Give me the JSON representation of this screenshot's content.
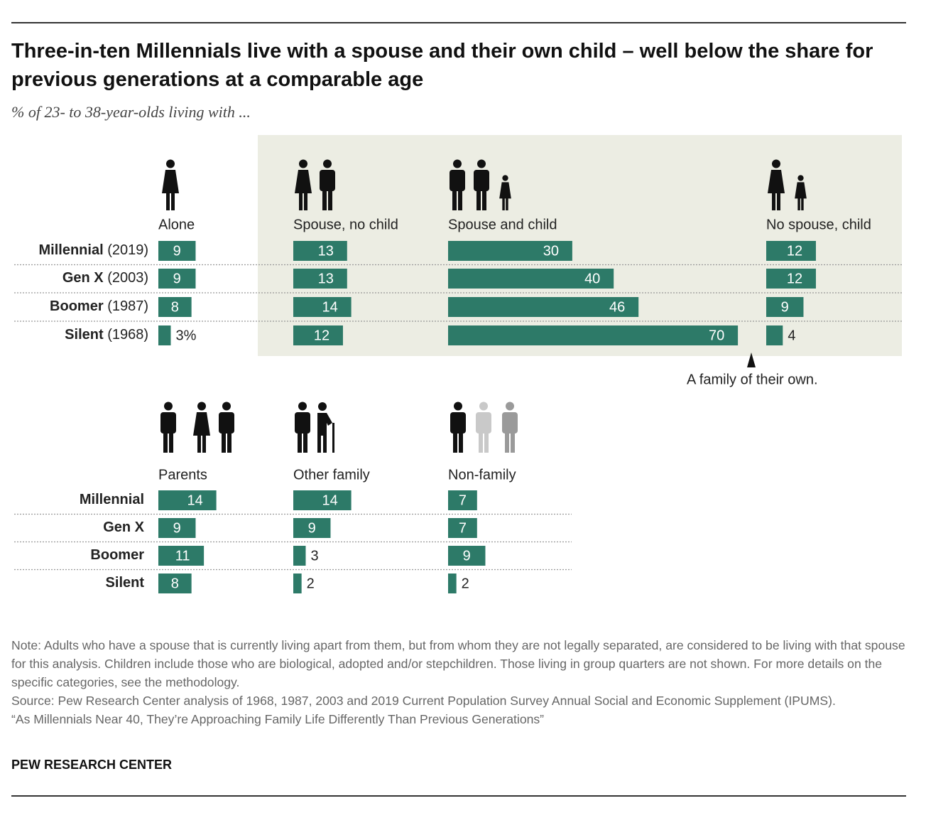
{
  "chart_data": [
    {
      "type": "bar",
      "title": "Three-in-ten Millennials live with a spouse and their own child – well below the share for previous generations at a comparable age",
      "subtitle": "% of 23- to 38-year-olds living with ...",
      "categories": [
        "Millennial",
        "Gen X",
        "Boomer",
        "Silent"
      ],
      "years": [
        "(2019)",
        "(2003)",
        "(1987)",
        "(1968)"
      ],
      "color": "#2d7a68",
      "series": [
        {
          "name": "Alone",
          "values": [
            9,
            9,
            8,
            3
          ],
          "value_labels": [
            "9",
            "9",
            "8",
            "3%"
          ]
        },
        {
          "name": "Spouse, no child",
          "values": [
            13,
            13,
            14,
            12
          ]
        },
        {
          "name": "Spouse and child",
          "values": [
            30,
            40,
            46,
            70
          ]
        },
        {
          "name": "No spouse, child",
          "values": [
            12,
            12,
            9,
            4
          ]
        }
      ],
      "annotation": "A family of their own."
    },
    {
      "type": "bar",
      "categories": [
        "Millennial",
        "Gen X",
        "Boomer",
        "Silent"
      ],
      "color": "#2d7a68",
      "series": [
        {
          "name": "Parents",
          "values": [
            14,
            9,
            11,
            8
          ]
        },
        {
          "name": "Other family",
          "values": [
            14,
            9,
            3,
            2
          ]
        },
        {
          "name": "Non-family",
          "values": [
            7,
            7,
            9,
            2
          ]
        }
      ]
    }
  ],
  "footer": {
    "note": "Note: Adults who have a spouse that is currently living apart from them, but from whom they are not legally separated, are considered to be living with that spouse for this analysis. Children include those who are biological, adopted and/or stepchildren. Those living in group quarters are not shown. For more details on the specific categories, see the methodology.",
    "source": "Source: Pew Research Center analysis of 1968, 1987, 2003 and 2019 Current Population Survey Annual Social and Economic Supplement (IPUMS).",
    "report": "“As Millennials Near 40, They’re Approaching Family Life Differently Than Previous Generations”",
    "brand": "PEW RESEARCH CENTER"
  }
}
